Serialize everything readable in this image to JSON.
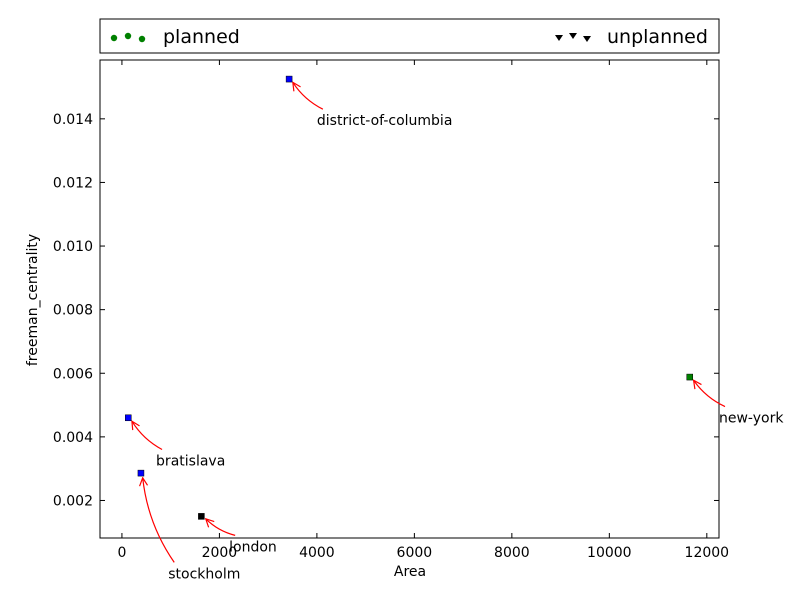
{
  "chart_data": {
    "type": "scatter",
    "xlabel": "Area",
    "ylabel": "freeman_centrality",
    "xlim": [
      -450,
      12250
    ],
    "ylim": [
      0.00082,
      0.01585
    ],
    "xticks": [
      0,
      2000,
      4000,
      6000,
      8000,
      10000,
      12000
    ],
    "yticks": [
      0.002,
      0.004,
      0.006,
      0.008,
      0.01,
      0.012,
      0.014
    ],
    "xtick_labels": [
      "0",
      "2000",
      "4000",
      "6000",
      "8000",
      "10000",
      "12000"
    ],
    "ytick_labels": [
      "0.002",
      "0.004",
      "0.006",
      "0.008",
      "0.010",
      "0.012",
      "0.014"
    ],
    "grid": false,
    "legend": {
      "placement": "top",
      "entries": [
        {
          "label": "planned",
          "marker": "circle",
          "color": "#008000"
        },
        {
          "label": "unplanned",
          "marker": "triangle-down",
          "color": "#000000"
        }
      ]
    },
    "points": [
      {
        "label": "district-of-columbia",
        "x": 3430,
        "y": 0.01525,
        "color": "#0000ff",
        "label_x": 4000,
        "label_y": 0.0138
      },
      {
        "label": "new-york",
        "x": 11650,
        "y": 0.00588,
        "color": "#008000",
        "label_x": 12250,
        "label_y": 0.00445
      },
      {
        "label": "bratislava",
        "x": 130,
        "y": 0.0046,
        "color": "#0000ff",
        "label_x": 700,
        "label_y": 0.0031
      },
      {
        "label": "stockholm",
        "x": 390,
        "y": 0.00286,
        "color": "#0000ff",
        "label_x": 950,
        "label_y": -0.00045
      },
      {
        "label": "london",
        "x": 1630,
        "y": 0.0015,
        "color": "#000000",
        "label_x": 2200,
        "label_y": 0.0004
      }
    ],
    "annotation_arrow_color": "#ff0000"
  }
}
